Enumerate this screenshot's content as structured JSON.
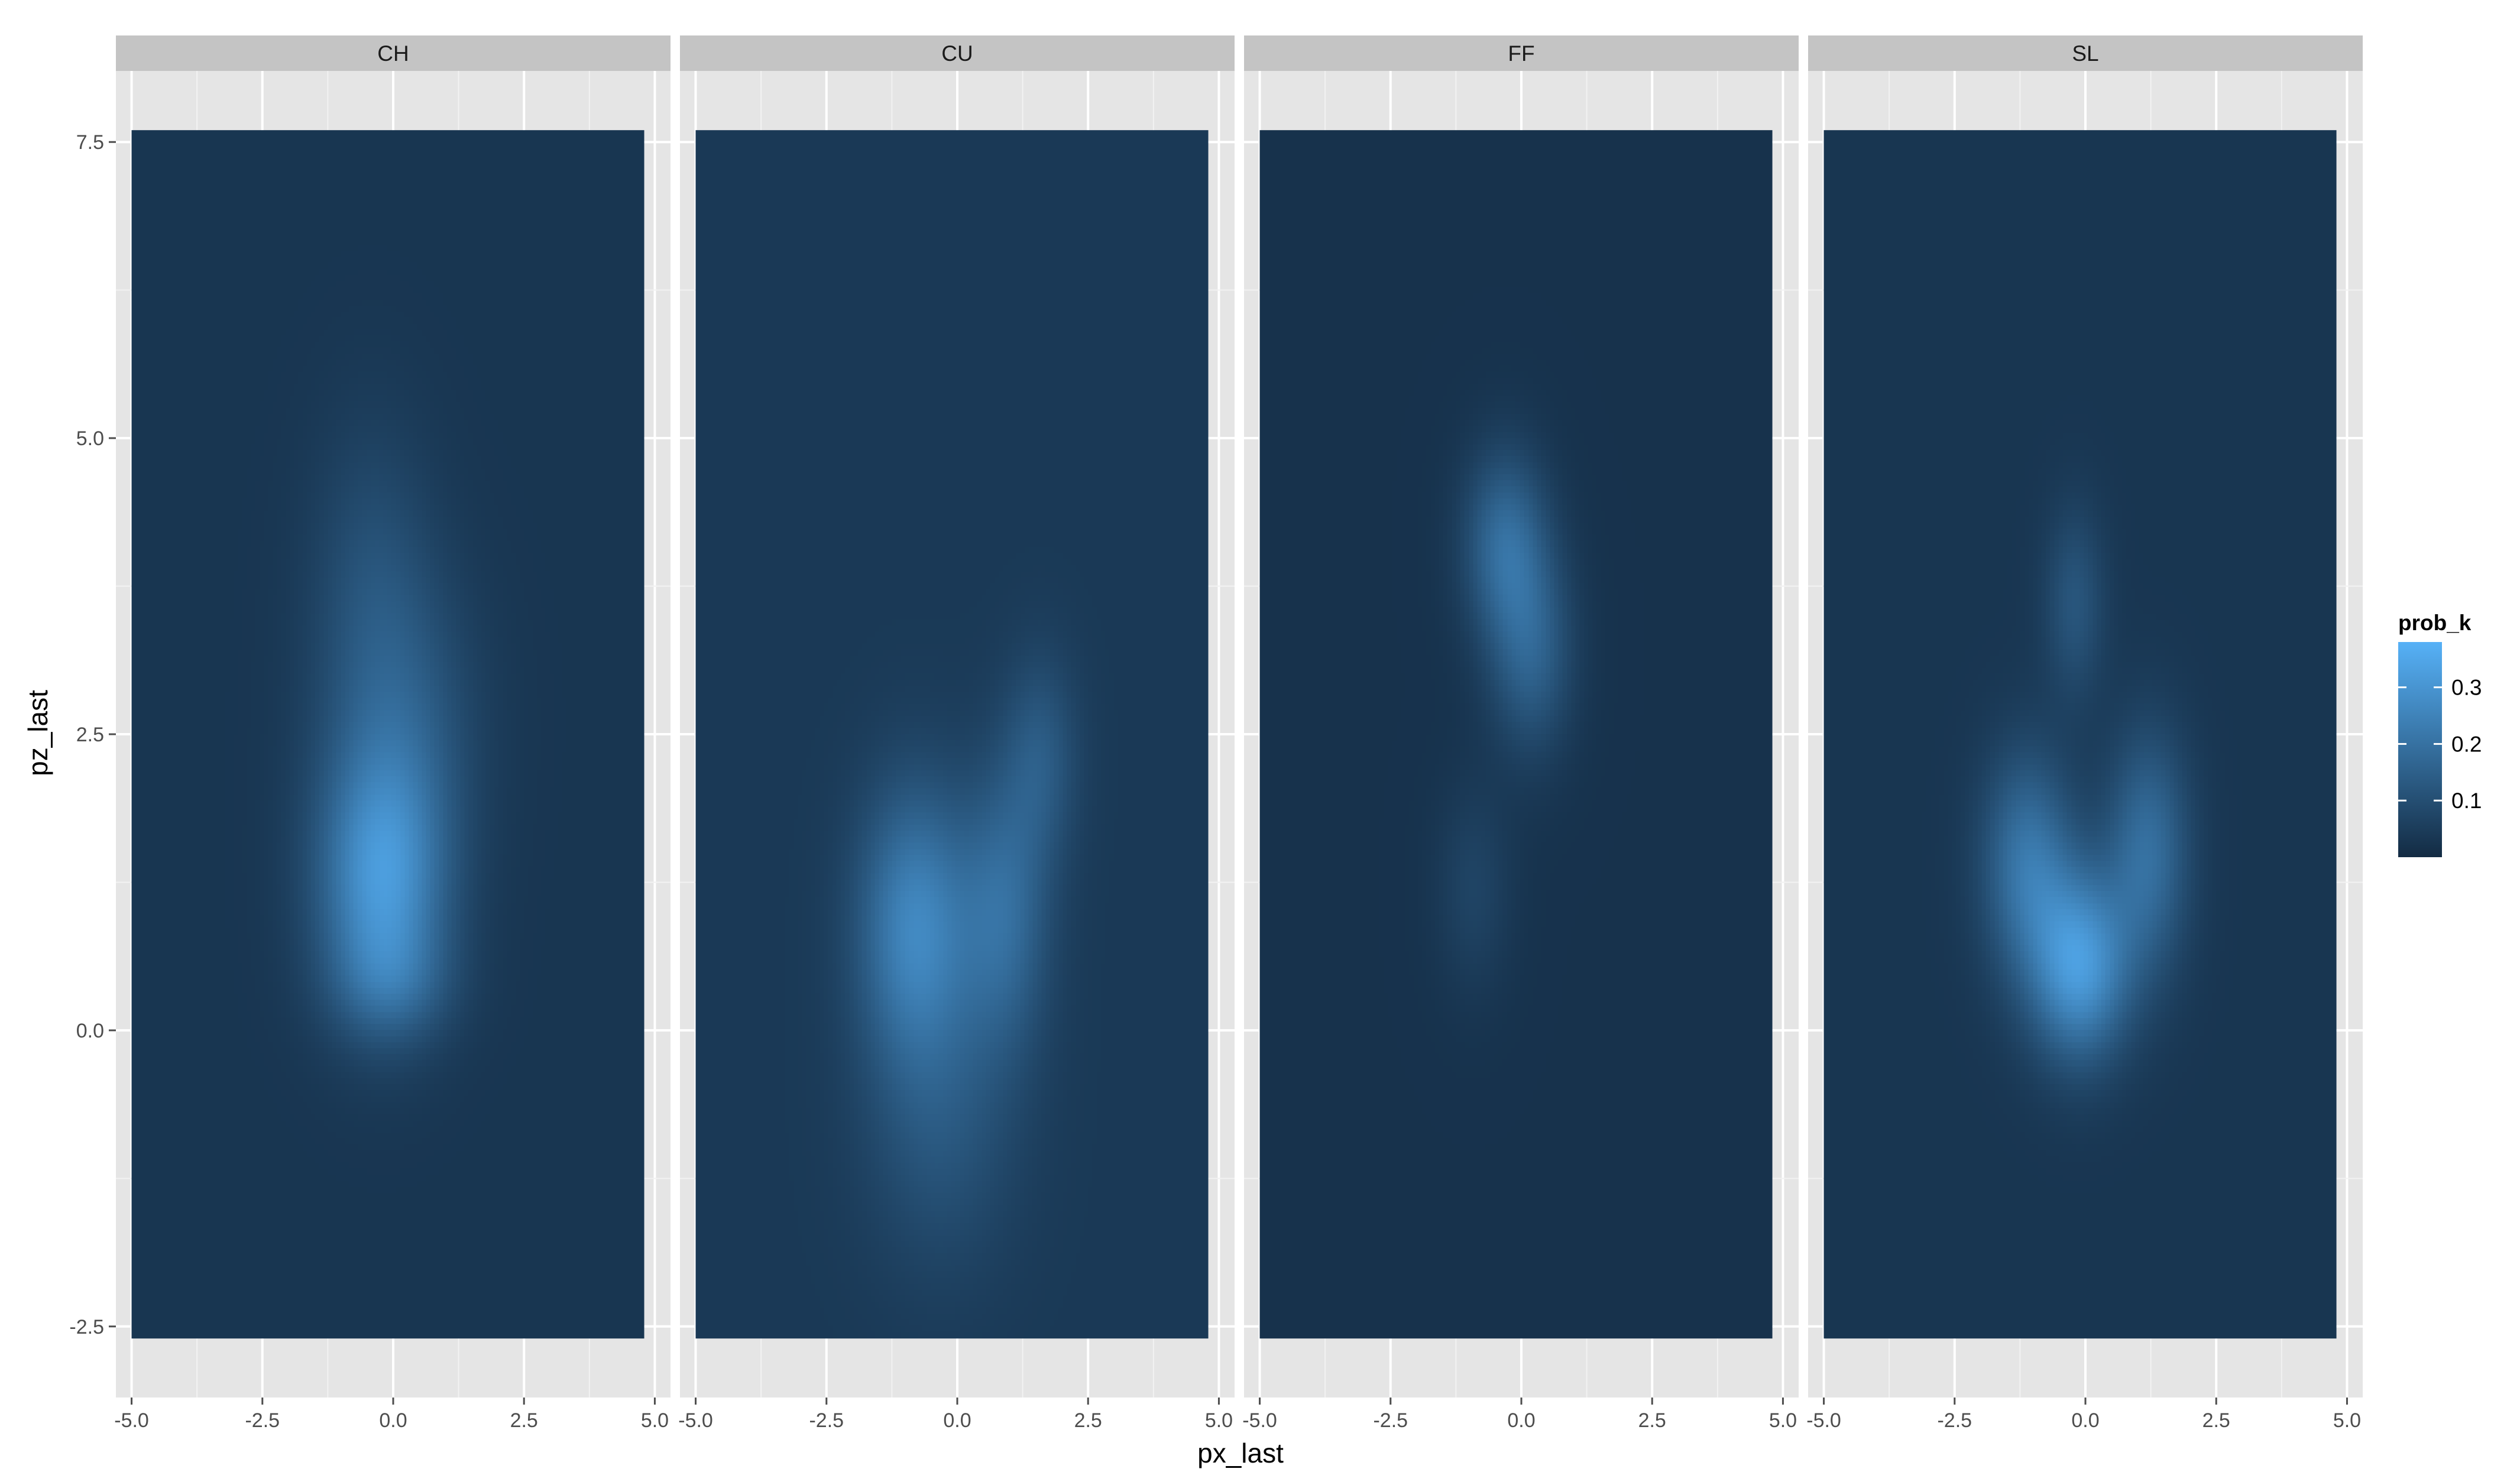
{
  "chart_data": {
    "type": "heatmap",
    "title": "",
    "xlabel": "px_last",
    "ylabel": "pz_last",
    "xlim": [
      -5.3,
      5.3
    ],
    "ylim": [
      -3.1,
      8.1
    ],
    "x_ticks": [
      -5.0,
      -2.5,
      0.0,
      2.5,
      5.0
    ],
    "x_tick_labels": [
      "-5.0",
      "-2.5",
      "0.0",
      "2.5",
      "5.0"
    ],
    "y_ticks": [
      -2.5,
      0.0,
      2.5,
      5.0,
      7.5
    ],
    "y_tick_labels": [
      "-2.5",
      "0.0",
      "2.5",
      "5.0",
      "7.5"
    ],
    "tile_extent": {
      "x": [
        -5.0,
        4.8
      ],
      "y": [
        -2.6,
        7.6
      ]
    },
    "grid": true,
    "legend": {
      "title": "prob_k",
      "position": "right",
      "breaks": [
        0.1,
        0.2,
        0.3
      ],
      "break_labels": [
        "0.1",
        "0.2",
        "0.3"
      ],
      "range": [
        0.0,
        0.38
      ],
      "color_low": "#132B43",
      "color_high": "#56B1F7"
    },
    "panels": [
      {
        "label": "CH",
        "background": 0.03,
        "peaks": [
          {
            "x": -0.2,
            "y": 1.25,
            "sx": 0.85,
            "sy": 0.75,
            "a": 0.26
          },
          {
            "x": 0.1,
            "y": 2.6,
            "sx": 1.0,
            "sy": 0.9,
            "a": 0.1
          },
          {
            "x": -0.4,
            "y": 3.9,
            "sx": 0.8,
            "sy": 0.9,
            "a": 0.06
          },
          {
            "x": 0.0,
            "y": 0.4,
            "sx": 0.8,
            "sy": 0.35,
            "a": 0.08
          }
        ]
      },
      {
        "label": "CU",
        "background": 0.04,
        "peaks": [
          {
            "x": -0.8,
            "y": 0.9,
            "sx": 0.75,
            "sy": 0.8,
            "a": 0.21
          },
          {
            "x": 0.9,
            "y": 1.0,
            "sx": 0.6,
            "sy": 0.8,
            "a": 0.14
          },
          {
            "x": 1.6,
            "y": 2.3,
            "sx": 0.5,
            "sy": 0.6,
            "a": 0.09
          },
          {
            "x": -0.3,
            "y": -0.7,
            "sx": 1.0,
            "sy": 0.9,
            "a": 0.08
          }
        ]
      },
      {
        "label": "FF",
        "background": 0.02,
        "peaks": [
          {
            "x": -0.3,
            "y": 4.1,
            "sx": 0.55,
            "sy": 0.55,
            "a": 0.16
          },
          {
            "x": 0.2,
            "y": 3.2,
            "sx": 0.55,
            "sy": 0.6,
            "a": 0.13
          },
          {
            "x": -0.9,
            "y": 1.2,
            "sx": 0.5,
            "sy": 0.6,
            "a": 0.05
          }
        ]
      },
      {
        "label": "SL",
        "background": 0.03,
        "peaks": [
          {
            "x": -0.1,
            "y": 0.55,
            "sx": 0.65,
            "sy": 0.55,
            "a": 0.28
          },
          {
            "x": -1.1,
            "y": 1.4,
            "sx": 0.6,
            "sy": 0.65,
            "a": 0.18
          },
          {
            "x": 1.2,
            "y": 1.5,
            "sx": 0.55,
            "sy": 0.7,
            "a": 0.16
          },
          {
            "x": -0.2,
            "y": 3.6,
            "sx": 0.4,
            "sy": 0.55,
            "a": 0.09
          }
        ]
      }
    ]
  }
}
